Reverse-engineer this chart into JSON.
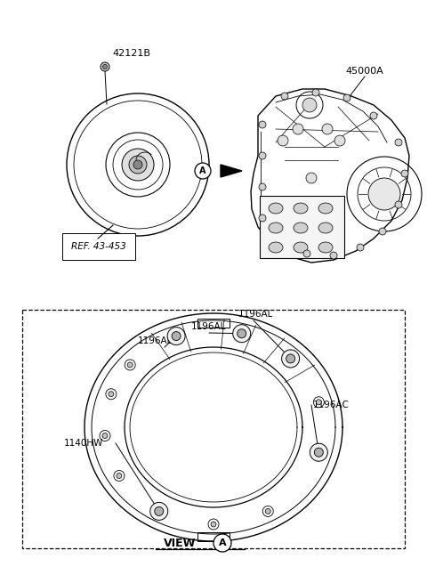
{
  "background_color": "#ffffff",
  "fig_width": 4.8,
  "fig_height": 6.55,
  "dpi": 100,
  "label_42121B": "42121B",
  "label_45000A": "45000A",
  "label_ref": "REF. 43-453",
  "label_1196AL": "1196AL",
  "label_1196AC": "1196AC",
  "label_1140HW": "1140HW",
  "label_view": "VIEW"
}
